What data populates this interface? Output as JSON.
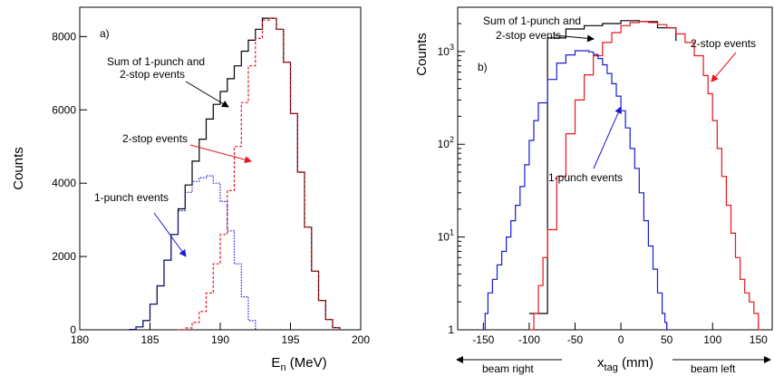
{
  "colors": {
    "sum": "#000000",
    "two_stop": "#e8141b",
    "one_punch": "#1a1ad6"
  },
  "chart_data": [
    {
      "panel_label": "a)",
      "type": "line",
      "xlabel_main": "E",
      "xlabel_sub": "n",
      "xlabel_unit": " (MeV)",
      "ylabel": "Counts",
      "xlim": [
        180,
        200
      ],
      "ylim": [
        0,
        8800
      ],
      "y_scale": "linear",
      "xticks": [
        180,
        185,
        190,
        195,
        200
      ],
      "yticks": [
        0,
        2000,
        4000,
        6000,
        8000
      ],
      "annotations": {
        "sum_line1": "Sum of 1-punch and",
        "sum_line2": "2-stop events",
        "two_stop": "2-stop events",
        "one_punch": "1-punch events"
      },
      "series": [
        {
          "key": "sum",
          "style": "solid",
          "x": [
            183.5,
            184.0,
            184.5,
            185.0,
            185.5,
            186.0,
            186.5,
            187.0,
            187.5,
            188.0,
            188.5,
            189.0,
            189.5,
            190.0,
            190.5,
            191.0,
            191.5,
            192.0,
            192.5,
            193.0,
            193.5,
            194.0,
            194.5,
            195.0,
            195.5,
            196.0,
            196.5,
            197.0,
            197.5,
            198.0,
            198.5
          ],
          "y": [
            10,
            80,
            250,
            700,
            1200,
            1900,
            2600,
            3300,
            3950,
            4600,
            5200,
            5750,
            6150,
            6500,
            6850,
            7200,
            7600,
            7900,
            8200,
            8500,
            8500,
            8200,
            7300,
            5900,
            4300,
            2800,
            1600,
            800,
            280,
            60,
            0
          ]
        },
        {
          "key": "two_stop",
          "style": "dashed",
          "x": [
            187.0,
            187.5,
            188.0,
            188.5,
            189.0,
            189.5,
            190.0,
            190.5,
            191.0,
            191.5,
            192.0,
            192.5,
            193.0,
            193.5,
            194.0,
            194.5,
            195.0,
            195.5,
            196.0,
            196.5,
            197.0,
            197.5,
            198.0,
            198.5
          ],
          "y": [
            0,
            50,
            200,
            500,
            1000,
            1800,
            2600,
            3800,
            5000,
            6200,
            7200,
            7950,
            8450,
            8500,
            8200,
            7300,
            5900,
            4300,
            2800,
            1600,
            800,
            280,
            60,
            0
          ]
        },
        {
          "key": "one_punch",
          "style": "dotted",
          "x": [
            183.5,
            184.0,
            184.5,
            185.0,
            185.5,
            186.0,
            186.5,
            187.0,
            187.5,
            188.0,
            188.5,
            189.0,
            189.5,
            190.0,
            190.5,
            191.0,
            191.5,
            192.0,
            192.5
          ],
          "y": [
            10,
            80,
            250,
            700,
            1200,
            1900,
            2600,
            3250,
            3750,
            4050,
            4150,
            4200,
            4000,
            3500,
            2700,
            1800,
            900,
            250,
            0
          ]
        }
      ]
    },
    {
      "panel_label": "b)",
      "type": "line",
      "xlabel_main": "x",
      "xlabel_sub": "tag",
      "xlabel_unit": " (mm)",
      "ylabel": "Counts",
      "xlim": [
        -178,
        165
      ],
      "ylim": [
        1,
        3000
      ],
      "y_scale": "log",
      "xticks": [
        -150,
        -100,
        -50,
        0,
        50,
        100,
        150
      ],
      "yticks": [
        1,
        10,
        100,
        1000
      ],
      "ytick_labels": [
        {
          "base": "1",
          "exp": ""
        },
        {
          "base": "10",
          "exp": "1"
        },
        {
          "base": "10",
          "exp": "2"
        },
        {
          "base": "10",
          "exp": "3"
        }
      ],
      "beam_right": "beam right",
      "beam_left": "beam left",
      "annotations": {
        "sum_line1": "Sum of 1-punch and",
        "sum_line2": "2-stop events",
        "two_stop": "2-stop events",
        "one_punch": "1-punch events"
      },
      "series": [
        {
          "key": "sum",
          "style": "solid",
          "x": [
            -100,
            -80,
            -60,
            -40,
            -20,
            0,
            20,
            40,
            60
          ],
          "y": [
            1.5,
            1400,
            1750,
            1900,
            2000,
            2150,
            2100,
            1800,
            1300
          ]
        },
        {
          "key": "two_stop",
          "style": "solid",
          "x": [
            -100,
            -95,
            -90,
            -85,
            -80,
            -70,
            -60,
            -50,
            -40,
            -30,
            -20,
            -10,
            0,
            10,
            20,
            30,
            40,
            50,
            60,
            70,
            80,
            90,
            95,
            100,
            105,
            110,
            115,
            120,
            125,
            130,
            135,
            140,
            145,
            150,
            152
          ],
          "y": [
            1,
            1.5,
            3,
            6,
            12,
            45,
            130,
            300,
            560,
            900,
            1250,
            1600,
            1900,
            2050,
            2100,
            2050,
            1950,
            1800,
            1550,
            1250,
            900,
            550,
            350,
            180,
            90,
            45,
            22,
            11,
            6,
            3.5,
            2.5,
            2,
            1.5,
            1,
            1
          ]
        },
        {
          "key": "one_punch",
          "style": "solid",
          "x": [
            -150,
            -148,
            -145,
            -140,
            -135,
            -130,
            -125,
            -120,
            -115,
            -110,
            -105,
            -100,
            -95,
            -90,
            -80,
            -70,
            -60,
            -50,
            -40,
            -35,
            -30,
            -25,
            -20,
            -15,
            -10,
            -5,
            0,
            5,
            10,
            15,
            20,
            25,
            30,
            35,
            40,
            45,
            48,
            50
          ],
          "y": [
            1,
            1.5,
            2.5,
            3.5,
            5,
            7,
            10,
            15,
            22,
            35,
            60,
            110,
            180,
            280,
            500,
            750,
            920,
            1020,
            1020,
            990,
            930,
            840,
            720,
            580,
            450,
            330,
            230,
            150,
            90,
            55,
            30,
            15,
            8,
            4.5,
            2.5,
            1.5,
            1.2,
            1
          ]
        }
      ]
    }
  ]
}
